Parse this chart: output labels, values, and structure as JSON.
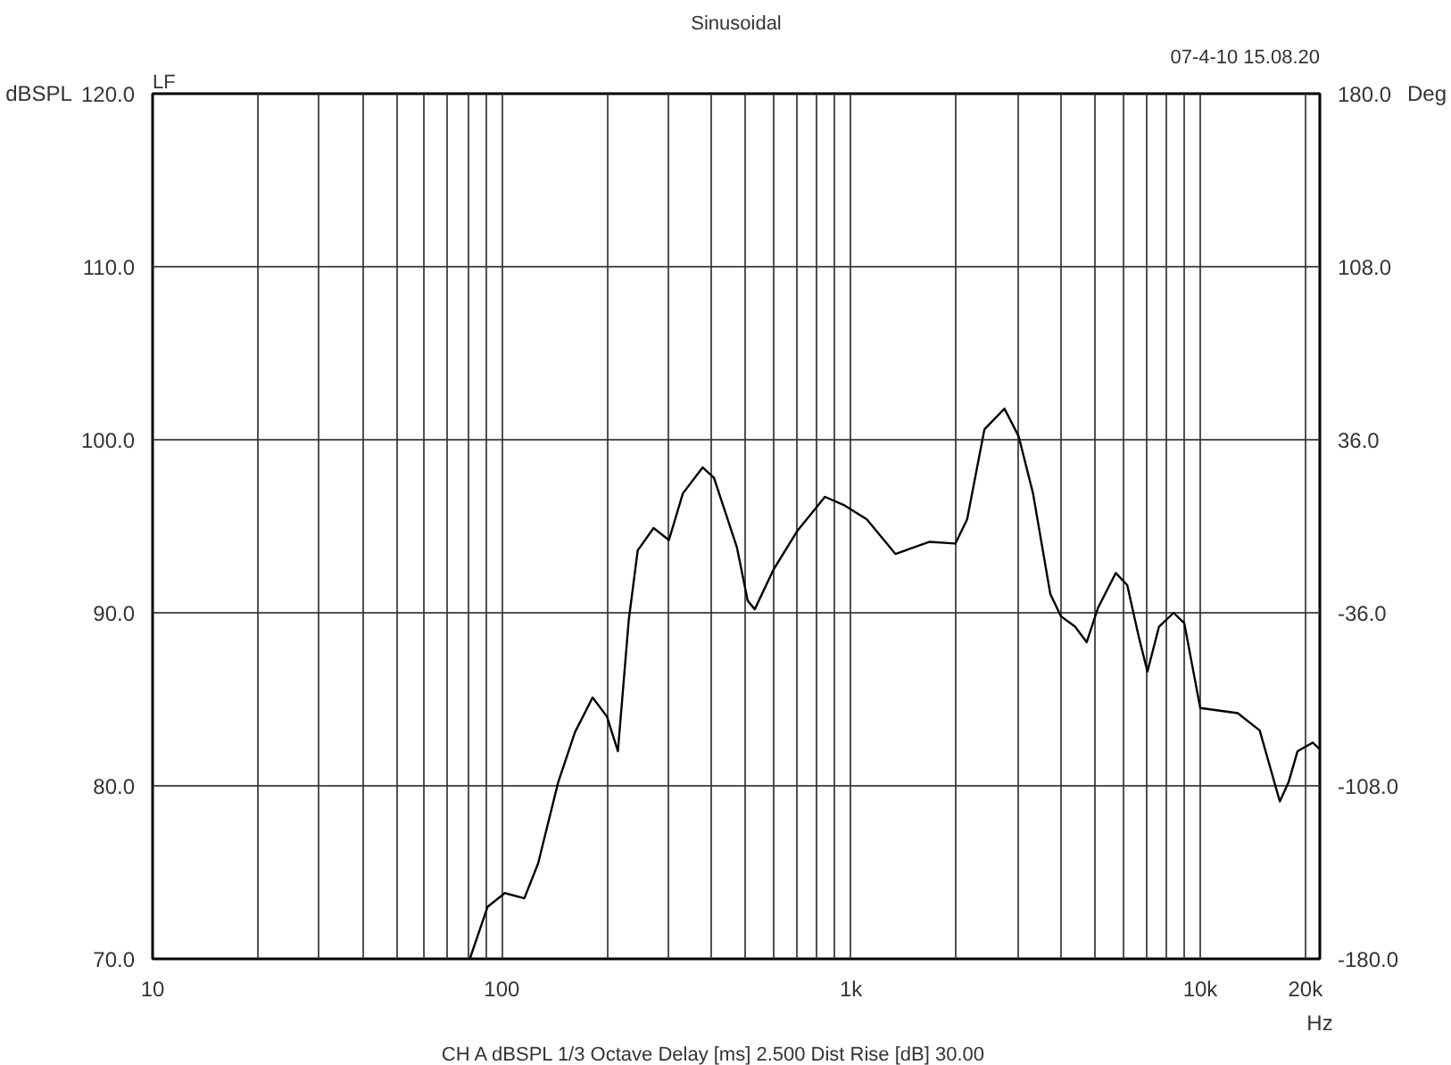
{
  "chart_data": {
    "type": "line",
    "title": "Sinusoidal",
    "xlabel": "Hz",
    "ylabel": "dBSPL",
    "y2label": "Deg",
    "annotations": [
      "LF",
      "07-4-10 15.08.20",
      "CH A   dBSPL   1/3 Octave   Delay [ms] 2.500   Dist Rise [dB] 30.00"
    ],
    "log": "x",
    "grid": true,
    "line_style": "solid",
    "marker": "none",
    "xlim": [
      10,
      22000
    ],
    "ylim": [
      70,
      120
    ],
    "y2lim": [
      -180,
      180
    ],
    "xticks": [
      10,
      {
        "value": 20,
        "label": null
      },
      {
        "value": 30,
        "label": null
      },
      {
        "value": 40,
        "label": null
      },
      {
        "value": 50,
        "label": null
      },
      {
        "value": 60,
        "label": null
      },
      {
        "value": 70,
        "label": null
      },
      {
        "value": 80,
        "label": null
      },
      {
        "value": 90,
        "label": null
      },
      100,
      {
        "value": 200,
        "label": null
      },
      {
        "value": 300,
        "label": null
      },
      {
        "value": 400,
        "label": null
      },
      {
        "value": 500,
        "label": null
      },
      {
        "value": 600,
        "label": null
      },
      {
        "value": 700,
        "label": null
      },
      {
        "value": 800,
        "label": null
      },
      {
        "value": 900,
        "label": null
      },
      {
        "value": 1000,
        "label": "1k"
      },
      {
        "value": 2000,
        "label": null
      },
      {
        "value": 3000,
        "label": null
      },
      {
        "value": 4000,
        "label": null
      },
      {
        "value": 5000,
        "label": null
      },
      {
        "value": 6000,
        "label": null
      },
      {
        "value": 7000,
        "label": null
      },
      {
        "value": 8000,
        "label": null
      },
      {
        "value": 9000,
        "label": null
      },
      {
        "value": 10000,
        "label": "10k"
      },
      {
        "value": 20000,
        "label": "20k"
      }
    ],
    "yticks": [
      {
        "value": 70,
        "label": "70.0"
      },
      {
        "value": 80,
        "label": "80.0"
      },
      {
        "value": 90,
        "label": "90.0"
      },
      {
        "value": 100,
        "label": "100.0"
      },
      {
        "value": 110,
        "label": "110.0"
      },
      {
        "value": 120,
        "label": "120.0"
      }
    ],
    "y2ticks": [
      {
        "value": -180,
        "label": "-180.0"
      },
      {
        "value": -108,
        "label": "-108.0"
      },
      {
        "value": -36,
        "label": "-36.0"
      },
      {
        "value": 36,
        "label": "36.0"
      },
      {
        "value": 108,
        "label": "108.0"
      },
      {
        "value": 180,
        "label": "180.0"
      }
    ],
    "series": [
      {
        "color": "#000000",
        "x": [
          81,
          91,
          102,
          116,
          127,
          145,
          162,
          182,
          200,
          215,
          231,
          245,
          272,
          301,
          330,
          376,
          405,
          471,
          506,
          530,
          600,
          700,
          842,
          959,
          1110,
          1340,
          1680,
          1990,
          2150,
          2410,
          2750,
          3020,
          3320,
          3720,
          3990,
          4380,
          4730,
          5100,
          5730,
          6180,
          6670,
          7060,
          7620,
          8390,
          9000,
          10000,
          12800,
          14800,
          16900,
          17900,
          19000,
          21000,
          22000
        ],
        "values": [
          70.0,
          73.0,
          73.8,
          73.5,
          75.5,
          80.2,
          83.1,
          85.1,
          84.0,
          82.0,
          89.6,
          93.6,
          94.9,
          94.2,
          96.9,
          98.4,
          97.8,
          93.8,
          90.7,
          90.2,
          92.5,
          94.7,
          96.7,
          96.2,
          95.4,
          93.4,
          94.1,
          94.0,
          95.4,
          100.6,
          101.8,
          100.2,
          96.9,
          91.1,
          89.8,
          89.2,
          88.3,
          90.3,
          92.3,
          91.6,
          88.6,
          86.6,
          89.2,
          90.0,
          89.4,
          84.5,
          84.2,
          83.2,
          79.1,
          80.2,
          82.0,
          82.5,
          82.1
        ]
      }
    ]
  }
}
